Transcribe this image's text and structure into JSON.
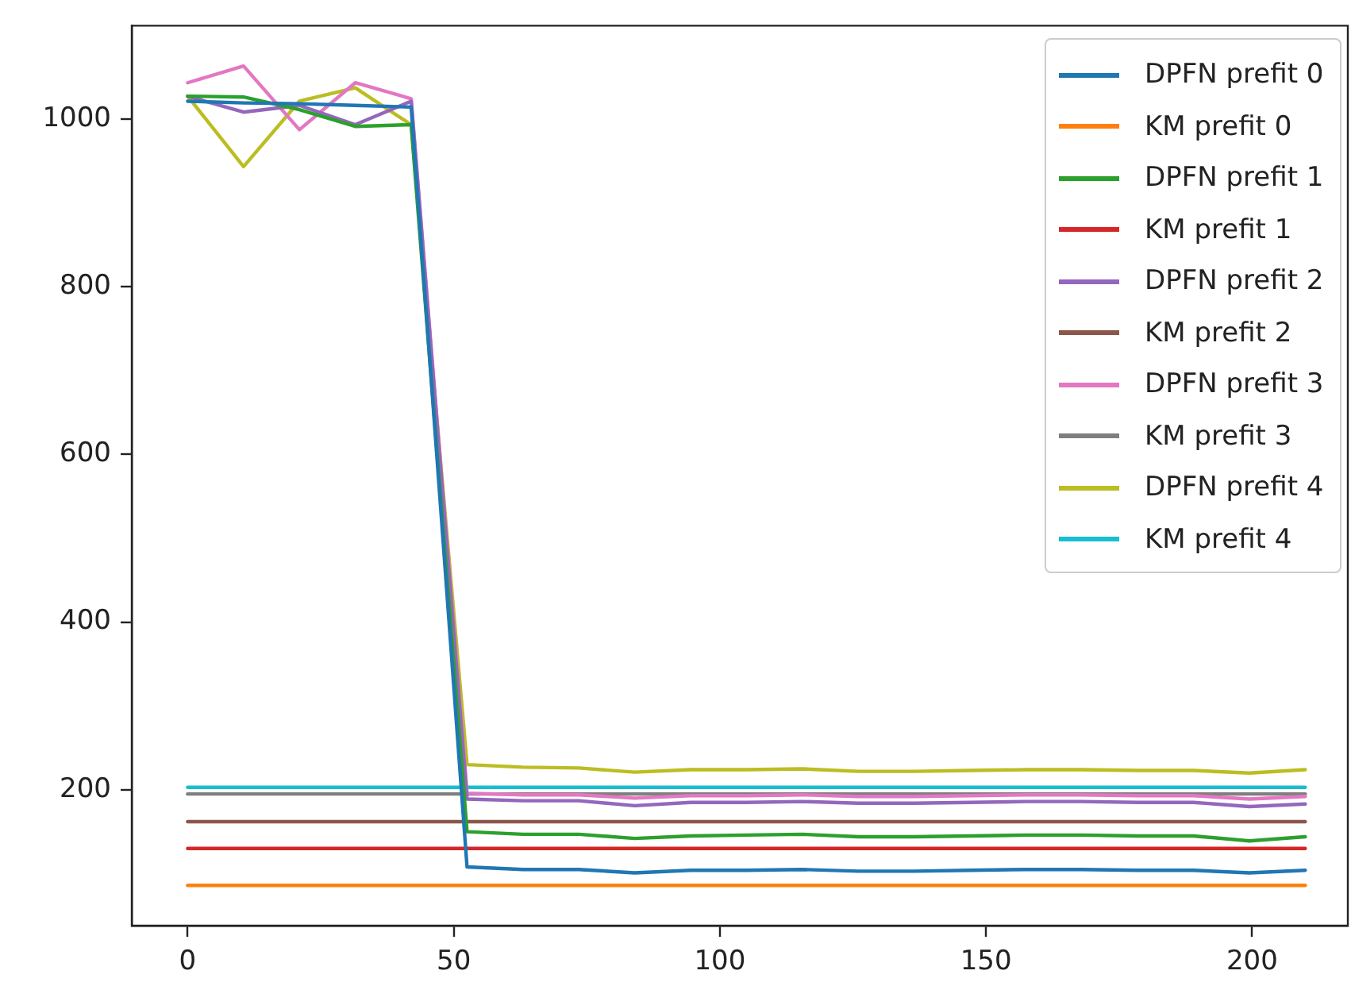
{
  "chart_data": {
    "type": "line",
    "x": [
      0,
      10.5,
      21,
      31.5,
      42,
      52.5,
      63,
      73.5,
      84,
      94.5,
      105,
      115.5,
      126,
      136.5,
      147,
      157.5,
      168,
      178.5,
      189,
      199.5,
      210
    ],
    "xlim": [
      -10.5,
      218
    ],
    "xticks": [
      0,
      50,
      100,
      150,
      200
    ],
    "ylim": [
      38,
      1111
    ],
    "yticks": [
      200,
      400,
      600,
      800,
      1000
    ],
    "grid": false,
    "legend": "top right",
    "marker": "none",
    "line_style": "solid",
    "series": [
      {
        "name": "DPFN prefit 0",
        "color": "#1f77b4",
        "values": [
          1021,
          1019,
          1018,
          1016,
          1014,
          108,
          105,
          105,
          101,
          104,
          104,
          105,
          103,
          103,
          104,
          105,
          105,
          104,
          104,
          101,
          104
        ]
      },
      {
        "name": "KM prefit 0",
        "color": "#ff7f0e",
        "values": [
          86,
          86,
          86,
          86,
          86,
          86,
          86,
          86,
          86,
          86,
          86,
          86,
          86,
          86,
          86,
          86,
          86,
          86,
          86,
          86,
          86
        ]
      },
      {
        "name": "DPFN prefit 1",
        "color": "#2ca02c",
        "values": [
          1027,
          1026,
          1011,
          991,
          993,
          150,
          147,
          147,
          142,
          145,
          146,
          147,
          144,
          144,
          145,
          146,
          146,
          145,
          145,
          139,
          144
        ]
      },
      {
        "name": "KM prefit 1",
        "color": "#d62728",
        "values": [
          130,
          130,
          130,
          130,
          130,
          130,
          130,
          130,
          130,
          130,
          130,
          130,
          130,
          130,
          130,
          130,
          130,
          130,
          130,
          130,
          130
        ]
      },
      {
        "name": "DPFN prefit 2",
        "color": "#9467bd",
        "values": [
          1027,
          1008,
          1016,
          993,
          1021,
          189,
          187,
          187,
          181,
          185,
          185,
          186,
          184,
          184,
          185,
          186,
          186,
          185,
          185,
          180,
          183
        ]
      },
      {
        "name": "KM prefit 2",
        "color": "#8c564b",
        "values": [
          162,
          162,
          162,
          162,
          162,
          162,
          162,
          162,
          162,
          162,
          162,
          162,
          162,
          162,
          162,
          162,
          162,
          162,
          162,
          162,
          162
        ]
      },
      {
        "name": "DPFN prefit 3",
        "color": "#e377c2",
        "values": [
          1043,
          1063,
          987,
          1043,
          1024,
          196,
          194,
          194,
          190,
          193,
          193,
          194,
          192,
          192,
          193,
          194,
          194,
          193,
          193,
          189,
          192
        ]
      },
      {
        "name": "KM prefit 3",
        "color": "#7f7f7f",
        "values": [
          195,
          195,
          195,
          195,
          195,
          195,
          195,
          195,
          195,
          195,
          195,
          195,
          195,
          195,
          195,
          195,
          195,
          195,
          195,
          195,
          195
        ]
      },
      {
        "name": "DPFN prefit 4",
        "color": "#bcbd22",
        "values": [
          1027,
          943,
          1021,
          1037,
          993,
          230,
          227,
          226,
          221,
          224,
          224,
          225,
          222,
          222,
          223,
          224,
          224,
          223,
          223,
          220,
          224
        ]
      },
      {
        "name": "KM prefit 4",
        "color": "#17becf",
        "values": [
          203,
          203,
          203,
          203,
          203,
          203,
          203,
          203,
          203,
          203,
          203,
          203,
          203,
          203,
          203,
          203,
          203,
          203,
          203,
          203,
          203
        ]
      }
    ]
  }
}
